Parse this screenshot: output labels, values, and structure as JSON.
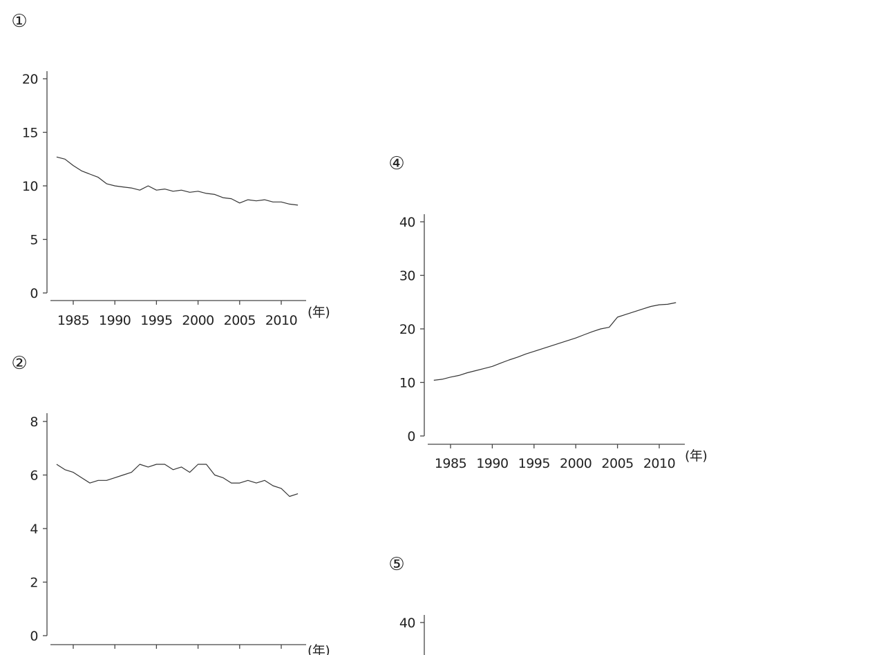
{
  "chart_data": [
    {
      "id": "1",
      "panel_label": "①",
      "type": "line",
      "xlabel": "(年)",
      "ylabel": "",
      "ylim": [
        0,
        20
      ],
      "yticks": [
        0,
        5,
        10,
        15,
        20
      ],
      "xticks": [
        1985,
        1990,
        1995,
        2000,
        2005,
        2010
      ],
      "x": [
        1983,
        1984,
        1985,
        1986,
        1987,
        1988,
        1989,
        1990,
        1991,
        1992,
        1993,
        1994,
        1995,
        1996,
        1997,
        1998,
        1999,
        2000,
        2001,
        2002,
        2003,
        2004,
        2005,
        2006,
        2007,
        2008,
        2009,
        2010,
        2011,
        2012
      ],
      "values": [
        12.7,
        12.5,
        11.9,
        11.4,
        11.1,
        10.8,
        10.2,
        10.0,
        9.9,
        9.8,
        9.6,
        10.0,
        9.6,
        9.7,
        9.5,
        9.6,
        9.4,
        9.5,
        9.3,
        9.2,
        8.9,
        8.8,
        8.4,
        8.7,
        8.6,
        8.7,
        8.5,
        8.5,
        8.3,
        8.2
      ]
    },
    {
      "id": "2",
      "panel_label": "②",
      "type": "line",
      "xlabel": "(年)",
      "ylabel": "",
      "ylim": [
        0,
        8
      ],
      "yticks": [
        0,
        2,
        4,
        6,
        8
      ],
      "x": [
        1983,
        1984,
        1985,
        1986,
        1987,
        1988,
        1989,
        1990,
        1991,
        1992,
        1993,
        1994,
        1995,
        1996,
        1997,
        1998,
        1999,
        2000,
        2001,
        2002,
        2003,
        2004,
        2005,
        2006,
        2007,
        2008,
        2009,
        2010,
        2011,
        2012
      ],
      "values": [
        6.4,
        6.2,
        6.1,
        5.9,
        5.7,
        5.8,
        5.8,
        5.9,
        6.0,
        6.1,
        6.4,
        6.3,
        6.4,
        6.4,
        6.2,
        6.3,
        6.1,
        6.4,
        6.4,
        6.0,
        5.9,
        5.7,
        5.7,
        5.8,
        5.7,
        5.8,
        5.6,
        5.5,
        5.2,
        5.3
      ]
    },
    {
      "id": "4",
      "panel_label": "④",
      "type": "line",
      "xlabel": "(年)",
      "ylabel": "",
      "ylim": [
        0,
        40
      ],
      "yticks": [
        0,
        10,
        20,
        30,
        40
      ],
      "xticks": [
        1985,
        1990,
        1995,
        2000,
        2005,
        2010
      ],
      "x": [
        1983,
        1984,
        1985,
        1986,
        1987,
        1988,
        1989,
        1990,
        1991,
        1992,
        1993,
        1994,
        1995,
        1996,
        1997,
        1998,
        1999,
        2000,
        2001,
        2002,
        2003,
        2004,
        2005,
        2006,
        2007,
        2008,
        2009,
        2010,
        2011,
        2012
      ],
      "values": [
        10.4,
        10.6,
        11.0,
        11.3,
        11.8,
        12.2,
        12.6,
        13.0,
        13.6,
        14.2,
        14.7,
        15.3,
        15.8,
        16.3,
        16.8,
        17.3,
        17.8,
        18.3,
        18.9,
        19.5,
        20.0,
        20.3,
        22.2,
        22.7,
        23.2,
        23.7,
        24.2,
        24.5,
        24.6,
        24.9
      ]
    },
    {
      "id": "5",
      "panel_label": "⑤",
      "type": "line",
      "ylim": [
        0,
        40
      ],
      "yticks": [
        40
      ]
    }
  ]
}
